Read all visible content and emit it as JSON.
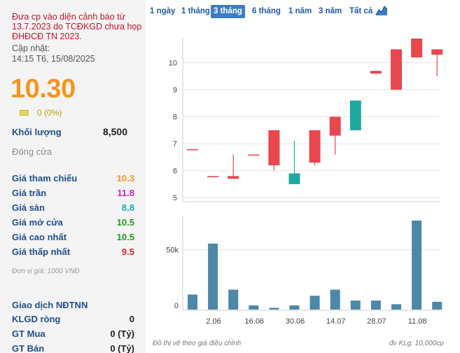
{
  "warning": "Đưa cp vào diện cảnh báo từ 13.7.2023 do TCĐKGD chưa họp ĐHĐCĐ TN 2023.",
  "update_label": "Cập nhật:",
  "update_value": "14:15 T6, 15/08/2025",
  "price": "10.30",
  "change": "0 (0%)",
  "volume": {
    "label": "Khối lượng",
    "value": "8,500"
  },
  "close_label": "Đóng cửa",
  "stats": [
    {
      "label": "Giá tham chiếu",
      "value": "10.3",
      "color": "#f7941d"
    },
    {
      "label": "Giá trần",
      "value": "11.8",
      "color": "#c71ad0"
    },
    {
      "label": "Giá sàn",
      "value": "8.8",
      "color": "#1aa3c7"
    },
    {
      "label": "Giá mở cửa",
      "value": "10.5",
      "color": "#1e9b1e"
    },
    {
      "label": "Giá cao nhất",
      "value": "10.5",
      "color": "#1e9b1e"
    },
    {
      "label": "Giá thấp nhất",
      "value": "9.5",
      "color": "#d9232d"
    }
  ],
  "unit_note": "Đơn vị giá: 1000 VNĐ",
  "foreign": {
    "title": "Giao dịch NĐTNN",
    "rows": [
      {
        "label": "KLGD ròng",
        "value": "0"
      },
      {
        "label": "GT Mua",
        "value": "0 (Tỷ)"
      },
      {
        "label": "GT Bán",
        "value": "0 (Tỷ)"
      }
    ]
  },
  "tabs": [
    {
      "label": "1 ngày",
      "active": false
    },
    {
      "label": "1 tháng",
      "active": false
    },
    {
      "label": "3 tháng",
      "active": true
    },
    {
      "label": "6 tháng",
      "active": false
    },
    {
      "label": "1 năm",
      "active": false
    },
    {
      "label": "3 năm",
      "active": false
    },
    {
      "label": "Tất cả",
      "active": false
    }
  ],
  "chart_type_icon": "area-chart-icon",
  "colors": {
    "up": "#20a8a0",
    "down": "#e8474c",
    "volume": "#4c88a8",
    "grid": "#e5e5e5"
  },
  "footer_left": "Đồ thị vẽ theo giá điều chỉnh",
  "footer_right": "đv KLg: 10,000cp",
  "chart_data": [
    {
      "type": "candlestick",
      "y_ticks": [
        5,
        6,
        7,
        8,
        9,
        10
      ],
      "ylim": [
        4.85,
        10.9
      ],
      "x_tick_labels": [
        "2.06",
        "16.06",
        "30.06",
        "14.07",
        "28.07",
        "11.08"
      ],
      "candles": [
        {
          "open": 6.8,
          "close": 6.8,
          "high": 6.8,
          "low": 6.8
        },
        {
          "open": 5.8,
          "close": 5.8,
          "high": 5.8,
          "low": 5.8
        },
        {
          "open": 5.8,
          "close": 5.7,
          "high": 6.6,
          "low": 5.7
        },
        {
          "open": 6.6,
          "close": 6.6,
          "high": 6.6,
          "low": 6.6
        },
        {
          "open": 7.5,
          "close": 6.2,
          "high": 7.5,
          "low": 6.0
        },
        {
          "open": 5.5,
          "close": 5.9,
          "high": 7.1,
          "low": 5.5
        },
        {
          "open": 7.5,
          "close": 6.3,
          "high": 7.5,
          "low": 6.2
        },
        {
          "open": 8.0,
          "close": 7.3,
          "high": 8.0,
          "low": 6.6
        },
        {
          "open": 7.5,
          "close": 8.6,
          "high": 8.6,
          "low": 7.5
        },
        {
          "open": 9.7,
          "close": 9.6,
          "high": 9.7,
          "low": 9.6
        },
        {
          "open": 10.5,
          "close": 9.0,
          "high": 10.5,
          "low": 9.0
        },
        {
          "open": 10.9,
          "close": 10.2,
          "high": 10.9,
          "low": 10.2
        },
        {
          "open": 10.5,
          "close": 10.3,
          "high": 10.5,
          "low": 9.5
        }
      ]
    },
    {
      "type": "bar",
      "y_ticks": [
        {
          "value": 0,
          "label": "0"
        },
        {
          "value": 50000,
          "label": "50k"
        }
      ],
      "ylim": [
        0,
        78000
      ],
      "values": [
        13000,
        55000,
        17000,
        4000,
        2000,
        4000,
        12000,
        17000,
        8000,
        8000,
        5000,
        74000,
        7000
      ]
    }
  ]
}
